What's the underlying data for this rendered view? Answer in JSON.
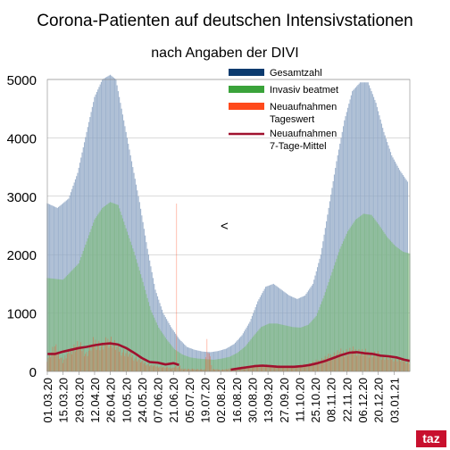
{
  "chart_data": {
    "type": "bar",
    "title": "Corona-Patienten auf deutschen Intensivstationen",
    "subtitle": "nach Angaben der DIVI",
    "ylim": [
      0,
      5000
    ],
    "yticks": [
      0,
      1000,
      2000,
      3000,
      4000,
      5000
    ],
    "x_start": "2020-03-01",
    "x_end": "2021-01-17",
    "xticks": [
      "01.03.20",
      "15.03.20",
      "29.03.20",
      "12.04.20",
      "26.04.20",
      "10.05.20",
      "24.05.20",
      "07.06.20",
      "21.06.20",
      "05.07.20",
      "19.07.20",
      "02.08.20",
      "16.08.20",
      "30.08.20",
      "13.09.20",
      "27.09.20",
      "11.10.20",
      "25.10.20",
      "08.11.20",
      "22.11.20",
      "06.12.20",
      "20.12.20",
      "03.01.21"
    ],
    "grid": true,
    "legend_position": "top-right",
    "annotation": "<",
    "colors": {
      "gesamtzahl": "#0b3a6e",
      "invasiv": "#3aa33a",
      "neuaufnahmen_tag": "#ff4a1c",
      "neuaufnahmen_7tage": "#a0112e"
    },
    "series": [
      {
        "name": "Gesamtzahl",
        "points": [
          [
            "2020-03-01",
            2880
          ],
          [
            "2020-03-10",
            2800
          ],
          [
            "2020-03-20",
            2960
          ],
          [
            "2020-03-28",
            3400
          ],
          [
            "2020-04-05",
            4100
          ],
          [
            "2020-04-12",
            4700
          ],
          [
            "2020-04-19",
            5000
          ],
          [
            "2020-04-26",
            5080
          ],
          [
            "2020-05-01",
            5000
          ],
          [
            "2020-05-08",
            4300
          ],
          [
            "2020-05-15",
            3600
          ],
          [
            "2020-05-22",
            2900
          ],
          [
            "2020-05-29",
            2100
          ],
          [
            "2020-06-05",
            1400
          ],
          [
            "2020-06-12",
            1000
          ],
          [
            "2020-06-19",
            760
          ],
          [
            "2020-06-26",
            560
          ],
          [
            "2020-07-03",
            420
          ],
          [
            "2020-07-10",
            370
          ],
          [
            "2020-07-17",
            340
          ],
          [
            "2020-07-24",
            330
          ],
          [
            "2020-07-31",
            350
          ],
          [
            "2020-08-07",
            390
          ],
          [
            "2020-08-14",
            470
          ],
          [
            "2020-08-21",
            620
          ],
          [
            "2020-08-28",
            850
          ],
          [
            "2020-09-04",
            1200
          ],
          [
            "2020-09-11",
            1450
          ],
          [
            "2020-09-18",
            1500
          ],
          [
            "2020-09-25",
            1400
          ],
          [
            "2020-10-02",
            1300
          ],
          [
            "2020-10-09",
            1240
          ],
          [
            "2020-10-16",
            1300
          ],
          [
            "2020-10-23",
            1500
          ],
          [
            "2020-10-30",
            2000
          ],
          [
            "2020-11-06",
            2800
          ],
          [
            "2020-11-13",
            3600
          ],
          [
            "2020-11-20",
            4300
          ],
          [
            "2020-11-27",
            4800
          ],
          [
            "2020-12-04",
            4950
          ],
          [
            "2020-12-11",
            4950
          ],
          [
            "2020-12-18",
            4600
          ],
          [
            "2020-12-25",
            4100
          ],
          [
            "2021-01-01",
            3700
          ],
          [
            "2021-01-08",
            3450
          ],
          [
            "2021-01-15",
            3250
          ]
        ]
      },
      {
        "name": "Invasiv beatmet",
        "points": [
          [
            "2020-03-01",
            1600
          ],
          [
            "2020-03-15",
            1570
          ],
          [
            "2020-03-29",
            1850
          ],
          [
            "2020-04-12",
            2600
          ],
          [
            "2020-04-19",
            2800
          ],
          [
            "2020-04-26",
            2900
          ],
          [
            "2020-05-03",
            2850
          ],
          [
            "2020-05-10",
            2450
          ],
          [
            "2020-05-17",
            2050
          ],
          [
            "2020-05-24",
            1600
          ],
          [
            "2020-06-01",
            1050
          ],
          [
            "2020-06-08",
            750
          ],
          [
            "2020-06-15",
            550
          ],
          [
            "2020-06-22",
            380
          ],
          [
            "2020-06-29",
            290
          ],
          [
            "2020-07-06",
            240
          ],
          [
            "2020-07-13",
            220
          ],
          [
            "2020-07-20",
            210
          ],
          [
            "2020-07-27",
            200
          ],
          [
            "2020-08-03",
            220
          ],
          [
            "2020-08-10",
            250
          ],
          [
            "2020-08-17",
            320
          ],
          [
            "2020-08-24",
            430
          ],
          [
            "2020-08-31",
            600
          ],
          [
            "2020-09-07",
            760
          ],
          [
            "2020-09-14",
            820
          ],
          [
            "2020-09-21",
            820
          ],
          [
            "2020-09-28",
            790
          ],
          [
            "2020-10-05",
            760
          ],
          [
            "2020-10-12",
            750
          ],
          [
            "2020-10-19",
            800
          ],
          [
            "2020-10-26",
            950
          ],
          [
            "2020-11-02",
            1300
          ],
          [
            "2020-11-09",
            1700
          ],
          [
            "2020-11-16",
            2100
          ],
          [
            "2020-11-23",
            2400
          ],
          [
            "2020-11-30",
            2600
          ],
          [
            "2020-12-07",
            2700
          ],
          [
            "2020-12-14",
            2680
          ],
          [
            "2020-12-21",
            2500
          ],
          [
            "2020-12-28",
            2300
          ],
          [
            "2021-01-04",
            2150
          ],
          [
            "2021-01-11",
            2050
          ],
          [
            "2021-01-17",
            2020
          ]
        ]
      },
      {
        "name": "Neuaufnahmen\nTageswert",
        "points": [
          [
            "2020-03-01",
            220
          ],
          [
            "2020-03-08",
            420
          ],
          [
            "2020-03-15",
            180
          ],
          [
            "2020-03-22",
            380
          ],
          [
            "2020-03-29",
            460
          ],
          [
            "2020-04-05",
            300
          ],
          [
            "2020-04-12",
            520
          ],
          [
            "2020-04-19",
            430
          ],
          [
            "2020-04-26",
            560
          ],
          [
            "2020-05-03",
            390
          ],
          [
            "2020-05-10",
            320
          ],
          [
            "2020-05-17",
            250
          ],
          [
            "2020-05-24",
            170
          ],
          [
            "2020-05-31",
            110
          ],
          [
            "2020-06-07",
            90
          ],
          [
            "2020-06-14",
            70
          ],
          [
            "2020-06-21",
            60
          ],
          [
            "2020-06-24",
            2480
          ],
          [
            "2020-06-28",
            50
          ],
          [
            "2020-07-05",
            40
          ],
          [
            "2020-07-12",
            40
          ],
          [
            "2020-07-19",
            30
          ],
          [
            "2020-07-21",
            520
          ],
          [
            "2020-07-26",
            40
          ],
          [
            "2020-08-02",
            30
          ],
          [
            "2020-08-09",
            40
          ],
          [
            "2020-08-16",
            60
          ],
          [
            "2020-08-23",
            80
          ],
          [
            "2020-08-30",
            90
          ],
          [
            "2020-09-06",
            110
          ],
          [
            "2020-09-13",
            100
          ],
          [
            "2020-09-20",
            95
          ],
          [
            "2020-09-27",
            90
          ],
          [
            "2020-10-04",
            85
          ],
          [
            "2020-10-11",
            95
          ],
          [
            "2020-10-18",
            120
          ],
          [
            "2020-10-25",
            160
          ],
          [
            "2020-11-01",
            210
          ],
          [
            "2020-11-08",
            270
          ],
          [
            "2020-11-15",
            320
          ],
          [
            "2020-11-22",
            340
          ],
          [
            "2020-11-29",
            360
          ],
          [
            "2020-12-06",
            330
          ],
          [
            "2020-12-13",
            310
          ],
          [
            "2020-12-20",
            290
          ],
          [
            "2020-12-27",
            240
          ],
          [
            "2021-01-03",
            230
          ],
          [
            "2021-01-10",
            200
          ],
          [
            "2021-01-17",
            160
          ]
        ]
      },
      {
        "name": "Neuaufnahmen\n7-Tage-Mittel",
        "points": [
          [
            "2020-03-01",
            300
          ],
          [
            "2020-03-08",
            300
          ],
          [
            "2020-03-15",
            340
          ],
          [
            "2020-03-22",
            370
          ],
          [
            "2020-03-29",
            400
          ],
          [
            "2020-04-05",
            420
          ],
          [
            "2020-04-12",
            450
          ],
          [
            "2020-04-19",
            470
          ],
          [
            "2020-04-26",
            480
          ],
          [
            "2020-05-03",
            460
          ],
          [
            "2020-05-10",
            400
          ],
          [
            "2020-05-17",
            320
          ],
          [
            "2020-05-24",
            230
          ],
          [
            "2020-05-31",
            160
          ],
          [
            "2020-06-07",
            150
          ],
          [
            "2020-06-14",
            120
          ],
          [
            "2020-06-21",
            140
          ],
          [
            "2020-06-26",
            110
          ]
        ]
      },
      {
        "name": "Neuaufnahmen\n7-Tage-Mittel",
        "points": [
          [
            "2020-08-11",
            30
          ],
          [
            "2020-08-18",
            50
          ],
          [
            "2020-08-25",
            70
          ],
          [
            "2020-09-01",
            90
          ],
          [
            "2020-09-08",
            100
          ],
          [
            "2020-09-15",
            90
          ],
          [
            "2020-09-22",
            80
          ],
          [
            "2020-09-29",
            80
          ],
          [
            "2020-10-06",
            80
          ],
          [
            "2020-10-13",
            90
          ],
          [
            "2020-10-20",
            110
          ],
          [
            "2020-10-27",
            140
          ],
          [
            "2020-11-03",
            180
          ],
          [
            "2020-11-10",
            230
          ],
          [
            "2020-11-17",
            280
          ],
          [
            "2020-11-24",
            320
          ],
          [
            "2020-12-01",
            330
          ],
          [
            "2020-12-08",
            310
          ],
          [
            "2020-12-15",
            300
          ],
          [
            "2020-12-22",
            270
          ],
          [
            "2020-12-29",
            260
          ],
          [
            "2021-01-05",
            240
          ],
          [
            "2021-01-12",
            200
          ],
          [
            "2021-01-17",
            180
          ]
        ]
      }
    ]
  },
  "logo_text": "taz"
}
